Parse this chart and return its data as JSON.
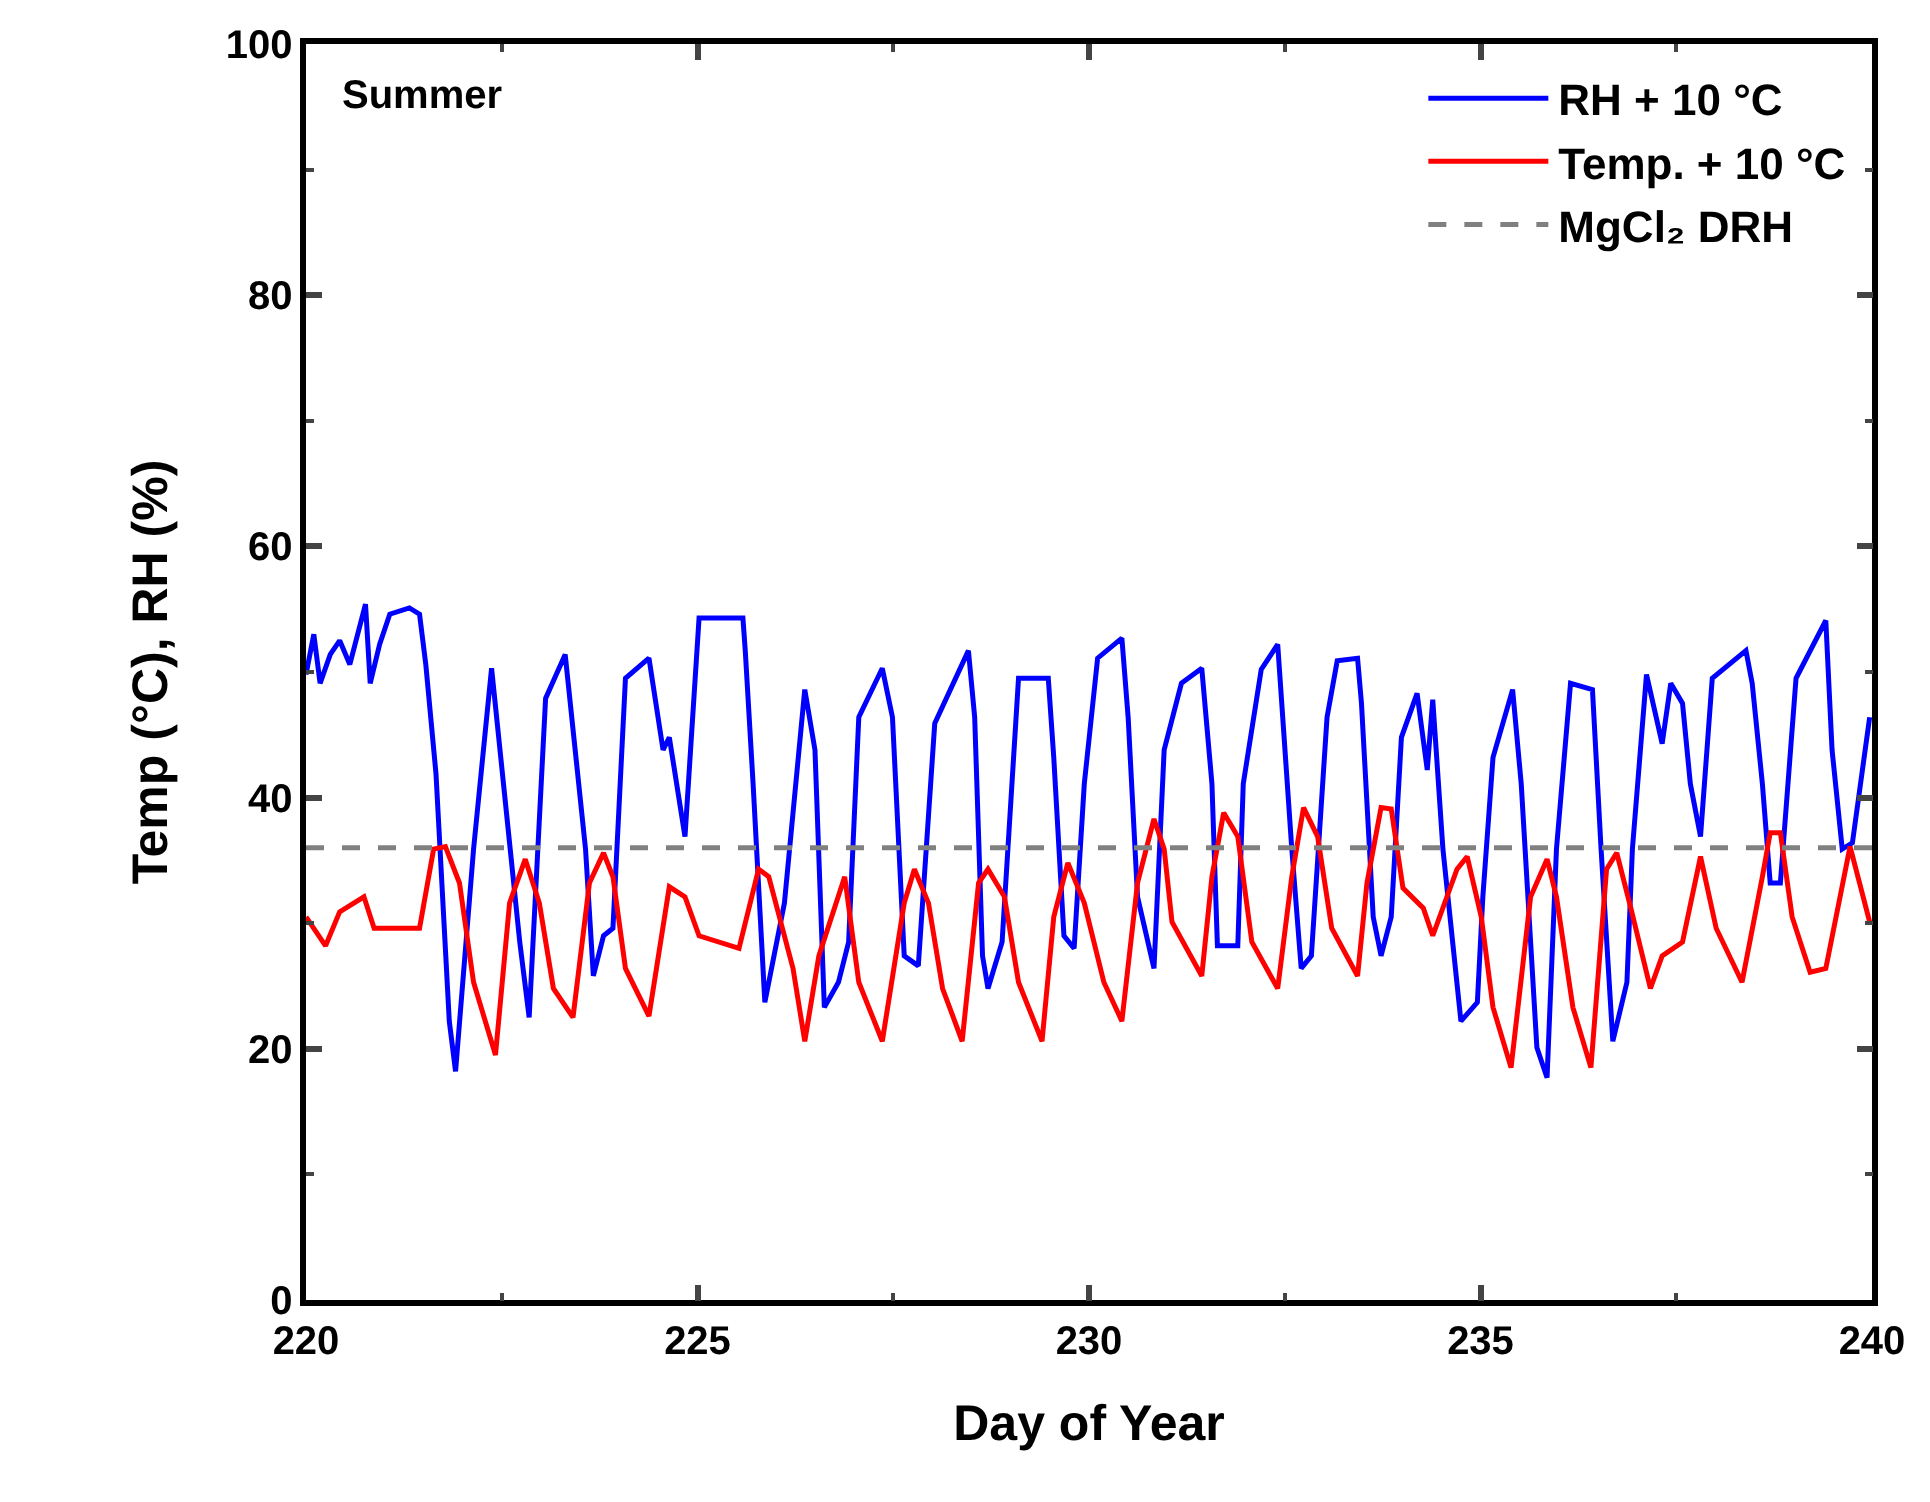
{
  "chart_data": {
    "type": "line",
    "xlabel": "Day of Year",
    "ylabel": "Temp (°C), RH (%)",
    "annotations": [
      "Summer"
    ],
    "xlim": [
      220,
      240
    ],
    "xticks": [
      220,
      225,
      230,
      235,
      240
    ],
    "ylim": [
      0,
      100
    ],
    "yticks": [
      0,
      20,
      40,
      60,
      80,
      100
    ],
    "grid": false,
    "legend": "top right",
    "line_style": "solid",
    "marker": "none",
    "series": [
      {
        "name": "RH + 10 °C",
        "color": "#0000ff",
        "x": [
          220.0,
          220.1,
          220.18,
          220.31,
          220.43,
          220.56,
          220.76,
          220.82,
          220.94,
          221.07,
          221.32,
          221.45,
          221.53,
          221.66,
          221.83,
          221.91,
          222.14,
          222.37,
          222.73,
          222.85,
          223.06,
          223.31,
          223.57,
          223.67,
          223.8,
          223.92,
          224.08,
          224.38,
          224.56,
          224.64,
          224.84,
          225.02,
          225.58,
          225.61,
          225.71,
          225.86,
          226.11,
          226.37,
          226.5,
          226.62,
          226.8,
          226.93,
          227.06,
          227.36,
          227.49,
          227.64,
          227.82,
          228.03,
          228.46,
          228.54,
          228.64,
          228.71,
          228.89,
          229.1,
          229.48,
          229.55,
          229.68,
          229.81,
          229.94,
          230.11,
          230.42,
          230.5,
          230.62,
          230.83,
          230.96,
          231.18,
          231.44,
          231.57,
          231.64,
          231.9,
          231.97,
          232.2,
          232.41,
          232.59,
          232.71,
          232.84,
          233.04,
          233.17,
          233.43,
          233.48,
          233.63,
          233.73,
          233.86,
          233.99,
          234.19,
          234.32,
          234.39,
          234.52,
          234.75,
          234.96,
          235.03,
          235.16,
          235.41,
          235.52,
          235.72,
          235.85,
          235.97,
          236.15,
          236.43,
          236.54,
          236.69,
          236.87,
          236.94,
          237.12,
          237.32,
          237.43,
          237.58,
          237.68,
          237.81,
          237.96,
          238.39,
          238.47,
          238.6,
          238.7,
          238.83,
          239.03,
          239.41,
          239.49,
          239.62,
          239.75,
          239.97
        ],
        "values": [
          49.8,
          53.0,
          49.1,
          51.4,
          52.5,
          50.6,
          55.4,
          49.1,
          52.2,
          54.6,
          55.1,
          54.6,
          50.6,
          41.9,
          22.2,
          18.2,
          35.9,
          50.3,
          28.5,
          22.5,
          47.9,
          51.4,
          35.9,
          25.8,
          29.0,
          29.6,
          49.5,
          51.1,
          43.8,
          44.8,
          36.9,
          54.3,
          54.3,
          51.7,
          41.1,
          23.7,
          31.6,
          48.6,
          43.8,
          23.3,
          25.3,
          28.5,
          46.4,
          50.3,
          46.4,
          27.4,
          26.6,
          45.9,
          51.7,
          46.4,
          27.4,
          24.8,
          28.5,
          49.5,
          49.5,
          43.2,
          29.0,
          28.0,
          41.1,
          51.1,
          52.7,
          46.4,
          32.1,
          26.4,
          43.8,
          49.1,
          50.3,
          41.1,
          28.2,
          28.2,
          41.1,
          50.2,
          52.2,
          35.9,
          26.4,
          27.4,
          46.4,
          50.9,
          51.1,
          47.5,
          30.5,
          27.4,
          30.5,
          44.8,
          48.3,
          42.2,
          47.8,
          35.9,
          22.2,
          23.7,
          32.1,
          43.2,
          48.6,
          41.1,
          20.1,
          17.7,
          35.9,
          49.1,
          48.6,
          35.9,
          20.6,
          25.3,
          35.9,
          49.8,
          44.3,
          49.1,
          47.5,
          41.1,
          36.9,
          49.5,
          51.7,
          49.1,
          41.1,
          33.2,
          33.2,
          49.5,
          54.1,
          43.8,
          35.9,
          36.4,
          46.4
        ]
      },
      {
        "name": "Temp. + 10 °C",
        "color": "#ff0000",
        "x": [
          220.0,
          220.25,
          220.43,
          220.74,
          220.87,
          221.45,
          221.63,
          221.78,
          221.96,
          222.14,
          222.42,
          222.6,
          222.8,
          222.98,
          223.16,
          223.41,
          223.62,
          223.8,
          223.92,
          224.08,
          224.38,
          224.64,
          224.84,
          225.02,
          225.53,
          225.78,
          225.91,
          226.22,
          226.37,
          226.55,
          226.88,
          227.06,
          227.36,
          227.64,
          227.77,
          227.95,
          228.13,
          228.38,
          228.59,
          228.71,
          228.92,
          229.1,
          229.4,
          229.55,
          229.73,
          229.94,
          230.19,
          230.42,
          230.62,
          230.83,
          230.96,
          231.06,
          231.44,
          231.57,
          231.72,
          231.9,
          232.08,
          232.41,
          232.59,
          232.74,
          232.92,
          233.1,
          233.43,
          233.55,
          233.73,
          233.86,
          234.01,
          234.27,
          234.39,
          234.7,
          234.83,
          235.01,
          235.16,
          235.39,
          235.64,
          235.85,
          235.97,
          236.18,
          236.41,
          236.61,
          236.74,
          236.92,
          237.17,
          237.32,
          237.58,
          237.81,
          238.01,
          238.34,
          238.6,
          238.7,
          238.83,
          238.98,
          239.21,
          239.41,
          239.72,
          239.97
        ],
        "values": [
          30.5,
          28.2,
          30.9,
          32.1,
          29.6,
          29.6,
          35.9,
          36.1,
          33.2,
          25.3,
          19.5,
          31.6,
          35.1,
          31.6,
          24.8,
          22.5,
          33.2,
          35.6,
          33.7,
          26.4,
          22.6,
          32.9,
          32.1,
          29.0,
          28.0,
          34.3,
          33.7,
          26.4,
          20.6,
          27.4,
          33.7,
          25.3,
          20.6,
          31.6,
          34.3,
          31.6,
          24.8,
          20.6,
          33.2,
          34.3,
          32.1,
          25.3,
          20.6,
          30.5,
          34.8,
          31.6,
          25.3,
          22.2,
          33.2,
          38.3,
          35.9,
          30.1,
          25.8,
          33.7,
          38.8,
          36.9,
          28.5,
          24.8,
          33.7,
          39.2,
          36.9,
          29.6,
          25.8,
          33.2,
          39.2,
          39.1,
          32.8,
          31.2,
          29.0,
          34.3,
          35.3,
          30.5,
          23.3,
          18.5,
          32.1,
          35.1,
          32.1,
          23.3,
          18.5,
          34.3,
          35.6,
          31.2,
          24.8,
          27.4,
          28.5,
          35.3,
          29.6,
          25.3,
          33.7,
          37.2,
          37.2,
          30.5,
          26.1,
          26.4,
          36.1,
          30.1
        ]
      }
    ],
    "ref_lines": [
      {
        "axis": "y",
        "value": 36,
        "label": "MgCl₂ DRH",
        "color": "#808080",
        "line_style": "dashed"
      }
    ]
  }
}
